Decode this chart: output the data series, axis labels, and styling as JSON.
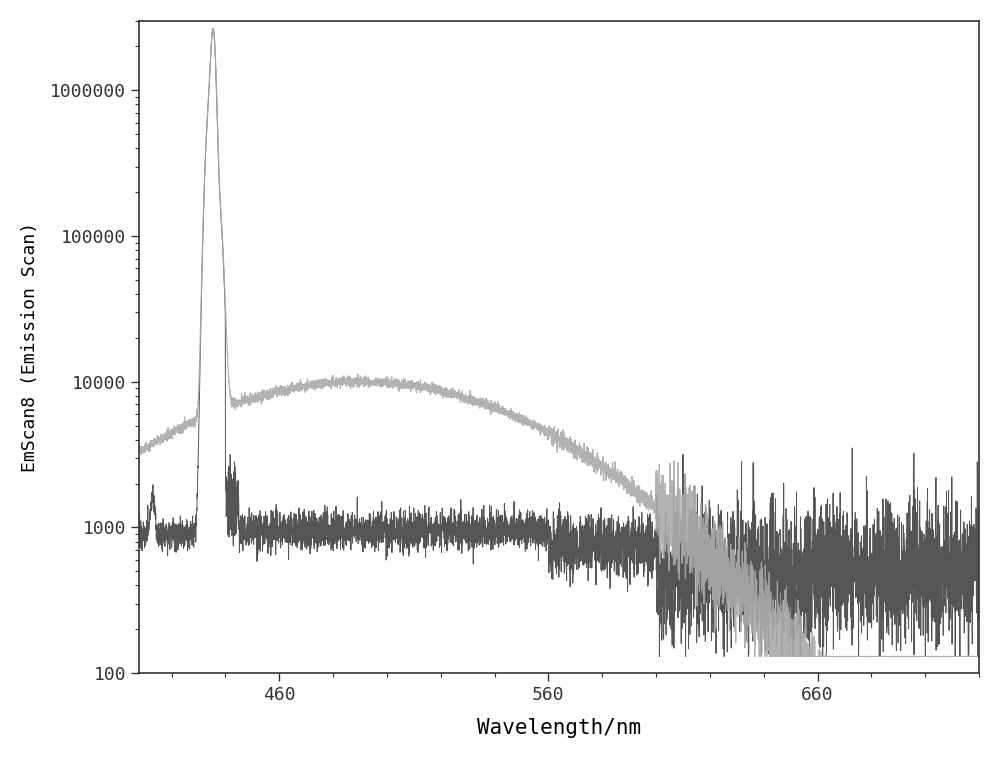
{
  "xlabel": "Wavelength/nm",
  "ylabel": "EmScan8 (Emission Scan)",
  "xmin": 408,
  "xmax": 720,
  "ymin": 100,
  "ymax": 3000000,
  "xticks": [
    460,
    560,
    660
  ],
  "yticks": [
    100,
    1000,
    10000,
    100000,
    1000000
  ],
  "ytick_labels": [
    "100",
    "1000",
    "10000",
    "100000",
    "1000000"
  ],
  "background_color": "#ffffff",
  "dark_line_color": "#555555",
  "light_line_color": "#aaaaaa",
  "font_family": "monospace",
  "seed": 77
}
